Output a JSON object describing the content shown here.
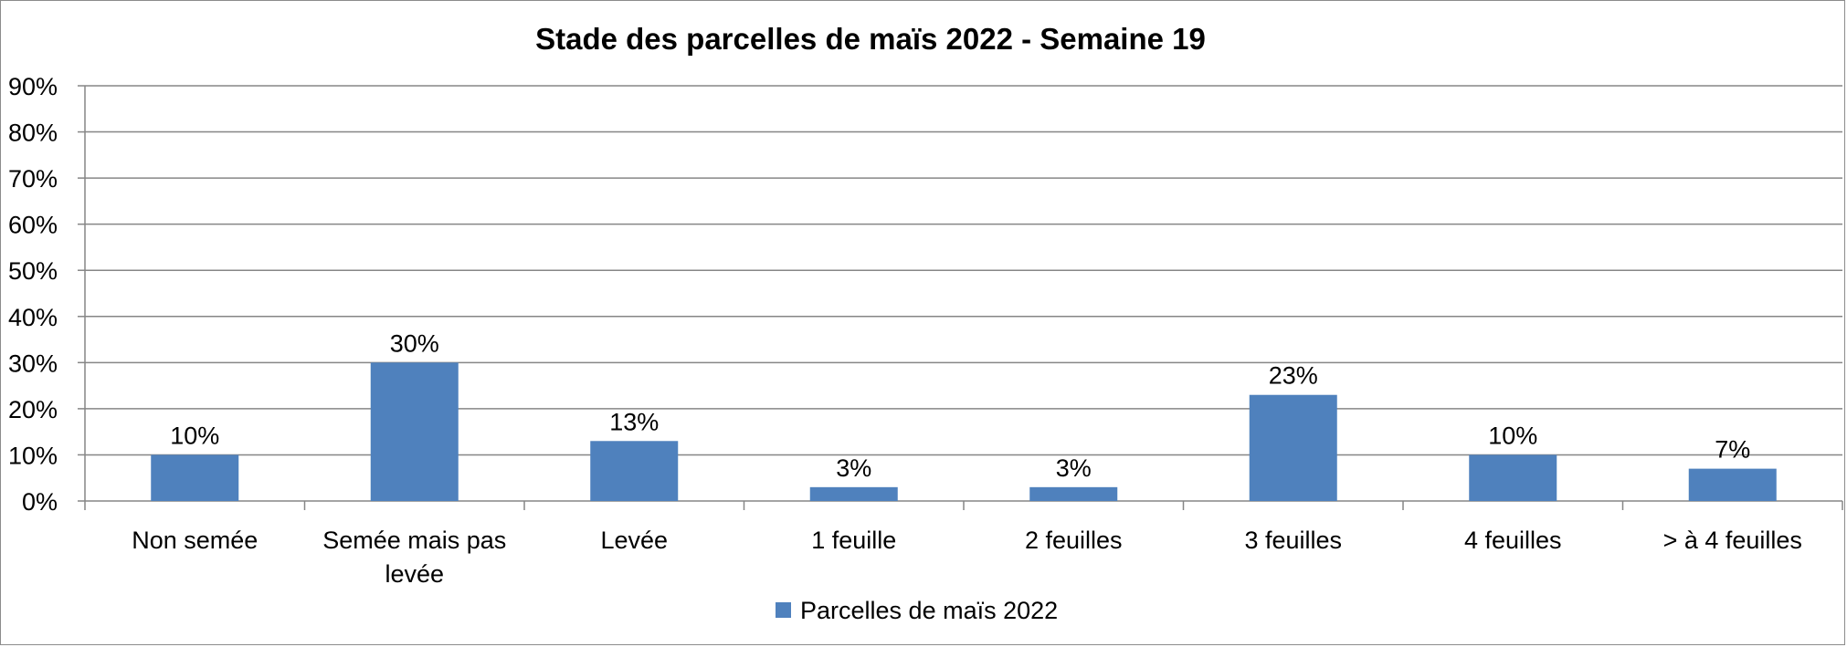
{
  "chart_data": {
    "type": "bar",
    "title": "Stade des parcelles de maïs 2022 -  Semaine 19",
    "categories": [
      [
        "Non semée"
      ],
      [
        "Semée mais pas",
        "levée"
      ],
      [
        "Levée"
      ],
      [
        "1 feuille"
      ],
      [
        "2 feuilles"
      ],
      [
        "3 feuilles"
      ],
      [
        "4 feuilles"
      ],
      [
        "> à 4 feuilles"
      ]
    ],
    "series": [
      {
        "name": "Parcelles de maïs 2022",
        "values": [
          10,
          30,
          13,
          3,
          3,
          23,
          10,
          7
        ],
        "labels": [
          "10%",
          "30%",
          "13%",
          "3%",
          "3%",
          "23%",
          "10%",
          "7%"
        ],
        "color": "#4f81bd"
      }
    ],
    "y_ticks": [
      "0%",
      "10%",
      "20%",
      "30%",
      "40%",
      "50%",
      "60%",
      "70%",
      "80%",
      "90%"
    ],
    "ylim": [
      0,
      90
    ],
    "xlabel": "",
    "ylabel": "",
    "grid": true,
    "legend_position": "bottom"
  }
}
